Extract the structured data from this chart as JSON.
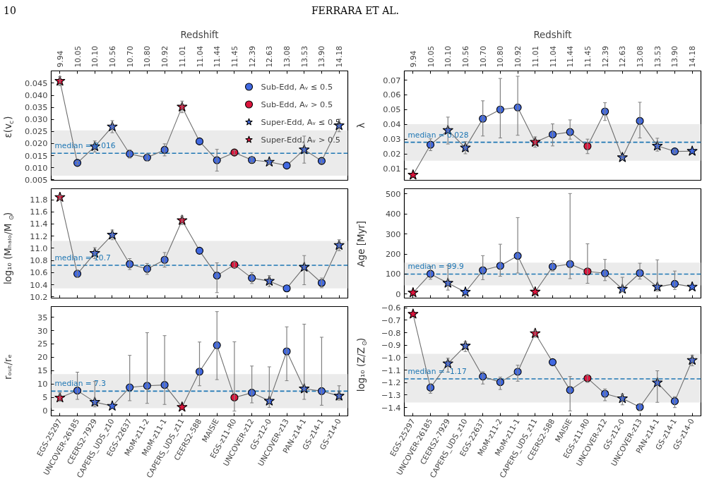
{
  "chart_data": [
    {
      "type": "scatter",
      "annotations": [
        "10",
        "FERRARA ET AL."
      ],
      "x2label": "Redshift",
      "ylabel": "ε(v$_{c}$)",
      "categories": [
        "9.94",
        "10.05",
        "10.10",
        "10.56",
        "10.70",
        "10.80",
        "10.92",
        "11.01",
        "11.04",
        "11.44",
        "11.45",
        "12.39",
        "12.63",
        "13.08",
        "13.53",
        "13.90",
        "14.18"
      ],
      "ylim": [
        0.0048,
        0.0501
      ],
      "yticks": [
        0.005,
        {
          "value": 0.01,
          "label": "0.010"
        },
        0.015,
        {
          "value": 0.02,
          "label": "0.020"
        },
        0.025,
        {
          "value": 0.03,
          "label": "0.030"
        },
        0.035,
        {
          "value": 0.04,
          "label": "0.040"
        },
        0.045
      ],
      "grid": false,
      "legend": "top right",
      "ref_lines": [
        {
          "axis": "y",
          "value": 0.016,
          "label": "median = 0.016",
          "color": "#1f77b4",
          "line_style": "dashed"
        }
      ],
      "bands": [
        {
          "axis": "y",
          "from": 0.0067,
          "to": 0.0255,
          "color": "#ebebeb"
        }
      ],
      "series": [
        {
          "type": "line",
          "color": "#6e6e6e",
          "values": [
            0.0459,
            0.012,
            0.0188,
            0.027,
            0.0157,
            0.0142,
            0.0174,
            0.0352,
            0.0209,
            0.0131,
            0.0163,
            0.0132,
            0.0124,
            0.0109,
            0.0175,
            0.0128,
            0.0275
          ],
          "errors": [
            0.0019,
            0.0007,
            0.0023,
            0.0025,
            0.0017,
            0.0015,
            0.0025,
            0.0024,
            null,
            0.0045,
            0.0009,
            0.0011,
            0.001,
            null,
            0.0056,
            0.001,
            0.0026
          ]
        },
        {
          "name": "Sub-Edd, Aᵥ ≤ 0.5",
          "marker": "circle",
          "color": "#4169e1",
          "values": [
            null,
            0.012,
            null,
            null,
            0.0157,
            0.0142,
            0.0174,
            null,
            0.0209,
            0.0131,
            null,
            0.0132,
            null,
            0.0109,
            null,
            0.0128,
            null
          ]
        },
        {
          "name": "Sub-Edd, Aᵥ > 0.5",
          "marker": "circle",
          "color": "#dc143c",
          "values": [
            null,
            null,
            null,
            null,
            null,
            null,
            null,
            null,
            null,
            null,
            0.0163,
            null,
            null,
            null,
            null,
            null,
            null
          ]
        },
        {
          "name": "Super-Edd, Aᵥ ≤ 0.5",
          "marker": "star",
          "color": "#4169e1",
          "values": [
            null,
            null,
            0.0188,
            0.027,
            null,
            null,
            null,
            null,
            null,
            null,
            null,
            null,
            0.0124,
            null,
            0.0175,
            null,
            0.0275
          ]
        },
        {
          "name": "Super-Edd, Aᵥ > 0.5",
          "marker": "star",
          "color": "#dc143c",
          "values": [
            0.0459,
            null,
            null,
            null,
            null,
            null,
            null,
            0.0352,
            null,
            null,
            null,
            null,
            null,
            null,
            null,
            null,
            null
          ]
        }
      ]
    },
    {
      "type": "scatter",
      "x2label": "Redshift",
      "ylabel": "λ",
      "categories": [
        "9.94",
        "10.05",
        "10.10",
        "10.56",
        "10.70",
        "10.80",
        "10.92",
        "11.01",
        "11.04",
        "11.44",
        "11.45",
        "12.39",
        "12.63",
        "13.08",
        "13.53",
        "13.90",
        "14.18"
      ],
      "ylim": [
        0.0023,
        0.0762
      ],
      "yticks": [
        0.01,
        0.02,
        0.03,
        0.04,
        0.05,
        0.06,
        0.07
      ],
      "grid": false,
      "ref_lines": [
        {
          "axis": "y",
          "value": 0.028,
          "label": "median = 0.028",
          "color": "#1f77b4",
          "line_style": "dashed"
        }
      ],
      "bands": [
        {
          "axis": "y",
          "from": 0.0155,
          "to": 0.0402,
          "color": "#ebebeb"
        }
      ],
      "series": [
        {
          "type": "line",
          "color": "#6e6e6e",
          "values": [
            0.0059,
            0.0263,
            0.0361,
            0.0243,
            0.0439,
            0.0501,
            0.0515,
            0.0281,
            0.0332,
            0.0349,
            0.0253,
            0.0488,
            0.0177,
            0.0424,
            0.0255,
            0.0218,
            0.022
          ],
          "errors": [
            null,
            0.004,
            [
              0.0268,
              0.045
            ],
            0.0041,
            [
              0.0322,
              0.056
            ],
            [
              0.0309,
              0.0711
            ],
            [
              0.0327,
              0.0726
            ],
            0.0035,
            [
              0.0255,
              0.0404
            ],
            [
              0.0301,
              0.0431
            ],
            [
              0.0203,
              0.0301
            ],
            [
              0.0427,
              0.0547
            ],
            0.0012,
            [
              0.0309,
              0.055
            ],
            [
              0.022,
              0.0307
            ],
            0.0012,
            null
          ]
        },
        {
          "marker": "circle",
          "color": "#4169e1",
          "values": [
            null,
            0.0263,
            null,
            null,
            0.0439,
            0.0501,
            0.0515,
            null,
            0.0332,
            0.0349,
            null,
            0.0488,
            null,
            0.0424,
            null,
            0.0218,
            null
          ]
        },
        {
          "marker": "circle",
          "color": "#dc143c",
          "values": [
            null,
            null,
            null,
            null,
            null,
            null,
            null,
            null,
            null,
            null,
            0.0253,
            null,
            null,
            null,
            null,
            null,
            null
          ]
        },
        {
          "marker": "star",
          "color": "#4169e1",
          "values": [
            null,
            null,
            0.0361,
            0.0243,
            null,
            null,
            null,
            null,
            null,
            null,
            null,
            null,
            0.0177,
            null,
            0.0255,
            null,
            0.022
          ]
        },
        {
          "marker": "star",
          "color": "#dc143c",
          "values": [
            0.0059,
            null,
            null,
            null,
            null,
            null,
            null,
            0.0281,
            null,
            null,
            null,
            null,
            null,
            null,
            null,
            null,
            null
          ]
        }
      ]
    },
    {
      "type": "scatter",
      "ylabel": "log₁₀ (Mₕₐₗₒ/M$_{⊙}$)",
      "tick_labels": "y",
      "categories": [
        null,
        null,
        null,
        null,
        null,
        null,
        null,
        null,
        null,
        null,
        null,
        null,
        null,
        null,
        null,
        null,
        null
      ],
      "ylim": [
        10.18,
        11.98
      ],
      "yticks": [
        10.2,
        10.4,
        10.6,
        10.8,
        {
          "value": 11,
          "label": "11.0"
        },
        11.2,
        11.4,
        11.6,
        11.8
      ],
      "grid": false,
      "ref_lines": [
        {
          "axis": "y",
          "value": 10.72,
          "label": "median = 10.7",
          "color": "#1f77b4",
          "line_style": "dashed"
        }
      ],
      "bands": [
        {
          "axis": "y",
          "from": 10.34,
          "to": 11.12,
          "color": "#ebebeb"
        }
      ],
      "series": [
        {
          "type": "line",
          "color": "#6e6e6e",
          "values": [
            11.84,
            10.58,
            10.92,
            11.22,
            10.74,
            10.66,
            10.81,
            11.46,
            10.96,
            10.55,
            10.73,
            10.51,
            10.46,
            10.34,
            10.69,
            10.43,
            11.05
          ],
          "errors": [
            0.03,
            0.06,
            0.09,
            0.08,
            0.09,
            0.09,
            0.12,
            0.07,
            null,
            [
              10.27,
              10.76
            ],
            0.05,
            0.09,
            0.09,
            null,
            [
              10.4,
              10.88
            ],
            0.08,
            0.09
          ]
        },
        {
          "marker": "circle",
          "color": "#4169e1",
          "values": [
            null,
            10.58,
            null,
            null,
            10.74,
            10.66,
            10.81,
            null,
            10.96,
            10.55,
            null,
            10.51,
            null,
            10.34,
            null,
            10.43,
            null
          ]
        },
        {
          "marker": "circle",
          "color": "#dc143c",
          "values": [
            null,
            null,
            null,
            null,
            null,
            null,
            null,
            null,
            null,
            null,
            10.73,
            null,
            null,
            null,
            null,
            null,
            null
          ]
        },
        {
          "marker": "star",
          "color": "#4169e1",
          "values": [
            null,
            null,
            10.92,
            11.22,
            null,
            null,
            null,
            null,
            null,
            null,
            null,
            null,
            10.46,
            null,
            10.69,
            null,
            11.05
          ]
        },
        {
          "marker": "star",
          "color": "#dc143c",
          "values": [
            11.84,
            null,
            null,
            null,
            null,
            null,
            null,
            11.46,
            null,
            null,
            null,
            null,
            null,
            null,
            null,
            null,
            null
          ]
        }
      ]
    },
    {
      "type": "scatter",
      "ylabel": "Age [Myr]",
      "tick_labels": "y",
      "categories": [
        null,
        null,
        null,
        null,
        null,
        null,
        null,
        null,
        null,
        null,
        null,
        null,
        null,
        null,
        null,
        null,
        null
      ],
      "ylim": [
        -20,
        526
      ],
      "yticks": [
        0,
        100,
        200,
        300,
        400,
        500
      ],
      "grid": false,
      "ref_lines": [
        {
          "axis": "y",
          "value": 99.9,
          "label": "median = 99.9",
          "color": "#1f77b4",
          "line_style": "dashed"
        }
      ],
      "bands": [
        {
          "axis": "y",
          "from": 43,
          "to": 157,
          "color": "#ebebeb"
        }
      ],
      "series": [
        {
          "type": "line",
          "color": "#6e6e6e",
          "values": [
            7,
            101,
            55,
            10,
            119,
            141,
            191,
            11,
            137,
            150,
            113,
            104,
            25,
            105,
            36,
            51,
            36
          ],
          "errors": [
            null,
            [
              74,
              138
            ],
            [
              20,
              143
            ],
            null,
            [
              72,
              192
            ],
            [
              89,
              249
            ],
            [
              105,
              382
            ],
            null,
            [
              115,
              166
            ],
            [
              77,
              502
            ],
            [
              54,
              251
            ],
            [
              67,
              173
            ],
            [
              11,
              84
            ],
            [
              75,
              154
            ],
            [
              15,
              171
            ],
            [
              23,
              115
            ],
            null
          ]
        },
        {
          "marker": "circle",
          "color": "#4169e1",
          "values": [
            null,
            101,
            null,
            null,
            119,
            141,
            191,
            null,
            137,
            150,
            null,
            104,
            null,
            105,
            null,
            51,
            null
          ]
        },
        {
          "marker": "circle",
          "color": "#dc143c",
          "values": [
            null,
            null,
            null,
            null,
            null,
            null,
            null,
            null,
            null,
            null,
            113,
            null,
            null,
            null,
            null,
            null,
            null
          ]
        },
        {
          "marker": "star",
          "color": "#4169e1",
          "values": [
            null,
            null,
            55,
            10,
            null,
            null,
            null,
            null,
            null,
            null,
            null,
            null,
            25,
            null,
            36,
            null,
            36
          ]
        },
        {
          "marker": "star",
          "color": "#dc143c",
          "values": [
            7,
            null,
            null,
            null,
            null,
            null,
            null,
            11,
            null,
            null,
            null,
            null,
            null,
            null,
            null,
            null,
            null
          ]
        }
      ]
    },
    {
      "type": "scatter",
      "ylabel": "rₒᵤₜ/rₑ",
      "categories": [
        "EGS-25297",
        "UNCOVER-26185",
        "CEERS2-7929",
        "CAPERS_UDS_z10",
        "EGS-22637",
        "MoM-z11-2",
        "MoM-z11-1",
        "CAPERS_UDS_z11",
        "CEERS2-588",
        "MAISIE",
        "EGS-z11-R0",
        "UNCOVER-z12",
        "GS-z12-0",
        "UNCOVER-z13",
        "PAN-z14-1",
        "GS-z14-1",
        "GS-z14-0"
      ],
      "ylim": [
        -2,
        39
      ],
      "yticks": [
        0,
        5,
        10,
        15,
        20,
        25,
        30,
        35
      ],
      "grid": false,
      "ref_lines": [
        {
          "axis": "y",
          "value": 7.3,
          "label": "median = 7.3",
          "color": "#1f77b4",
          "line_style": "dashed"
        }
      ],
      "bands": [
        {
          "axis": "y",
          "from": 0.9,
          "to": 13.7,
          "color": "#ebebeb"
        }
      ],
      "series": [
        {
          "type": "line",
          "color": "#6e6e6e",
          "values": [
            4.8,
            7.5,
            3.2,
            1.7,
            8.7,
            9.3,
            9.6,
            1.3,
            14.6,
            24.5,
            4.9,
            6.7,
            3.6,
            22.2,
            8.2,
            7.3,
            5.5
          ],
          "errors": [
            [
              3.5,
              6.7
            ],
            [
              4.2,
              14.4
            ],
            [
              1.4,
              10.9
            ],
            null,
            [
              3.7,
              20.7
            ],
            [
              2.7,
              29.2
            ],
            [
              2.3,
              28.1
            ],
            null,
            [
              9.3,
              25.7
            ],
            [
              11.6,
              37.1
            ],
            [
              -0.2,
              25.8
            ],
            [
              2.9,
              16.7
            ],
            [
              1.2,
              16.4
            ],
            [
              11.2,
              31.4
            ],
            [
              4.2,
              32.4
            ],
            [
              2,
              27.5
            ],
            [
              3.9,
              9.3
            ]
          ]
        },
        {
          "marker": "circle",
          "color": "#4169e1",
          "values": [
            null,
            7.5,
            null,
            null,
            8.7,
            9.3,
            9.6,
            null,
            14.6,
            24.5,
            null,
            6.7,
            null,
            22.2,
            null,
            7.3,
            null
          ]
        },
        {
          "marker": "circle",
          "color": "#dc143c",
          "values": [
            null,
            null,
            null,
            null,
            null,
            null,
            null,
            null,
            null,
            null,
            4.9,
            null,
            null,
            null,
            null,
            null,
            null
          ]
        },
        {
          "marker": "star",
          "color": "#4169e1",
          "values": [
            null,
            null,
            3.2,
            1.7,
            null,
            null,
            null,
            null,
            null,
            null,
            null,
            null,
            3.6,
            null,
            8.2,
            null,
            5.5
          ]
        },
        {
          "marker": "star",
          "color": "#dc143c",
          "values": [
            4.8,
            null,
            null,
            null,
            null,
            null,
            null,
            1.3,
            null,
            null,
            null,
            null,
            null,
            null,
            null,
            null,
            null
          ]
        }
      ]
    },
    {
      "type": "scatter",
      "ylabel": "log₁₀ (Z/Z$_{⊙}$)",
      "categories": [
        "EGS-25297",
        "UNCOVER-26185",
        "CEERS2-7929",
        "CAPERS_UDS_z10",
        "EGS-22637",
        "MoM-z11-2",
        "MoM-z11-1",
        "CAPERS_UDS_z11",
        "CEERS2-588",
        "MAISIE",
        "EGS-z11-R0",
        "UNCOVER-z12",
        "GS-z12-0",
        "UNCOVER-z13",
        "PAN-z14-1",
        "GS-z14-1",
        "GS-z14-0"
      ],
      "ylim": [
        -1.467,
        -0.59
      ],
      "yticks": [
        {
          "value": -1.4,
          "label": "−1.4"
        },
        {
          "value": -1.3,
          "label": "−1.3"
        },
        {
          "value": -1.2,
          "label": "−1.2"
        },
        {
          "value": -1.1,
          "label": "−1.1"
        },
        {
          "value": -1.0,
          "label": "−1.0"
        },
        {
          "value": -0.9,
          "label": "−0.9"
        },
        {
          "value": -0.8,
          "label": "−0.8"
        },
        {
          "value": -0.7,
          "label": "−0.7"
        },
        {
          "value": -0.6,
          "label": "−0.6"
        }
      ],
      "grid": false,
      "ref_lines": [
        {
          "axis": "y",
          "value": -1.17,
          "label": "median = -1.17",
          "color": "#1f77b4",
          "line_style": "dashed"
        }
      ],
      "bands": [
        {
          "axis": "y",
          "from": -1.36,
          "to": -0.969,
          "color": "#ebebeb"
        }
      ],
      "series": [
        {
          "type": "line",
          "color": "#6e6e6e",
          "values": [
            -0.65,
            -1.24,
            -1.047,
            -0.905,
            -1.151,
            -1.196,
            -1.113,
            -0.805,
            -1.036,
            -1.26,
            -1.165,
            -1.289,
            -1.327,
            -1.396,
            -1.2,
            -1.349,
            -1.02
          ],
          "errors": [
            null,
            [
              -1.285,
              -1.209
            ],
            [
              -1.115,
              -1.004
            ],
            [
              -0.951,
              -0.873
            ],
            [
              -1.211,
              -1.113
            ],
            [
              -1.255,
              -1.156
            ],
            [
              -1.189,
              -1.06
            ],
            [
              -0.836,
              -0.78
            ],
            null,
            [
              -1.427,
              -1.151
            ],
            [
              -1.198,
              -1.14
            ],
            [
              -1.345,
              -1.251
            ],
            [
              -1.378,
              -1.293
            ],
            [
              -1.425,
              -1.373
            ],
            [
              -1.358,
              -1.105
            ],
            [
              -1.4,
              -1.313
            ],
            [
              -1.065,
              -0.98
            ]
          ]
        },
        {
          "marker": "circle",
          "color": "#4169e1",
          "values": [
            null,
            -1.24,
            null,
            null,
            -1.151,
            -1.196,
            -1.113,
            null,
            -1.036,
            -1.26,
            null,
            -1.289,
            null,
            -1.396,
            null,
            -1.349,
            null
          ]
        },
        {
          "marker": "circle",
          "color": "#dc143c",
          "values": [
            null,
            null,
            null,
            null,
            null,
            null,
            null,
            null,
            null,
            null,
            -1.165,
            null,
            null,
            null,
            null,
            null,
            null
          ]
        },
        {
          "marker": "star",
          "color": "#4169e1",
          "values": [
            null,
            null,
            -1.047,
            -0.905,
            null,
            null,
            null,
            null,
            null,
            null,
            null,
            null,
            -1.327,
            null,
            -1.2,
            null,
            -1.02
          ]
        },
        {
          "marker": "star",
          "color": "#dc143c",
          "values": [
            -0.65,
            null,
            null,
            null,
            null,
            null,
            null,
            -0.805,
            null,
            null,
            null,
            null,
            null,
            null,
            null,
            null,
            null
          ]
        }
      ]
    }
  ]
}
